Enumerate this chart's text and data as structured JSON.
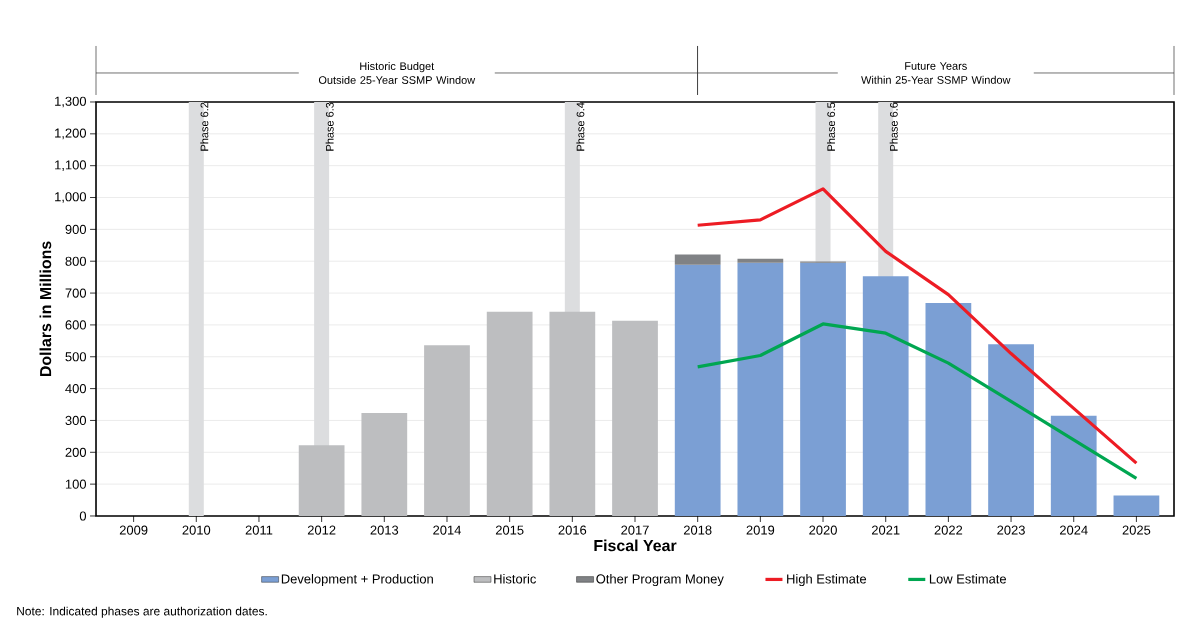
{
  "chart_data": {
    "type": "bar",
    "xlabel": "Fiscal Year",
    "ylabel": "Dollars in Millions",
    "stacked": true,
    "grid": "y",
    "legend": "bottom",
    "x": [
      2012,
      2013,
      2014,
      2015,
      2016,
      2017,
      2018,
      2019,
      2020,
      2021,
      2022,
      2023,
      2024,
      2025
    ],
    "xlim": [
      2008.4,
      2025.6
    ],
    "xticks": [
      2009,
      2010,
      2011,
      2012,
      2013,
      2014,
      2015,
      2016,
      2017,
      2018,
      2019,
      2020,
      2021,
      2022,
      2023,
      2024,
      2025
    ],
    "ylim": [
      0,
      1300
    ],
    "yticks": [
      0,
      100,
      200,
      300,
      400,
      500,
      600,
      700,
      800,
      900,
      {
        "value": 1000,
        "label": "1,000"
      },
      {
        "value": 1100,
        "label": "1,100"
      },
      {
        "value": 1200,
        "label": "1,200"
      },
      {
        "value": 1300,
        "label": "1,300"
      }
    ],
    "series": [
      {
        "name": "Development + Production",
        "color": "#7b9fd4",
        "values": [
          null,
          null,
          null,
          null,
          null,
          null,
          789,
          795,
          795,
          753,
          669,
          539,
          315,
          64
        ]
      },
      {
        "name": "Historic",
        "color": "#bdbec0",
        "values": [
          222,
          323,
          536,
          641,
          641,
          613,
          null,
          null,
          null,
          null,
          null,
          null,
          null,
          null
        ]
      },
      {
        "name": "Other Program Money",
        "color": "#808285",
        "values": [
          null,
          null,
          null,
          null,
          null,
          null,
          32,
          13,
          4,
          null,
          null,
          null,
          null,
          null
        ]
      },
      {
        "name": "High Estimate",
        "type": "line",
        "color": "#ed1c24",
        "values": [
          null,
          null,
          null,
          null,
          null,
          null,
          913,
          930,
          1027,
          831,
          695,
          510,
          338,
          166
        ]
      },
      {
        "name": "Low Estimate",
        "type": "line",
        "color": "#00a651",
        "values": [
          null,
          null,
          null,
          null,
          null,
          null,
          468,
          504,
          603,
          574,
          480,
          360,
          239,
          118
        ]
      }
    ],
    "ref_lines": [
      {
        "axis": "x",
        "value": 2010,
        "label": "Phase 6.2",
        "color": "#dcdddf"
      },
      {
        "axis": "x",
        "value": 2012,
        "label": "Phase 6.3",
        "color": "#dcdddf"
      },
      {
        "axis": "x",
        "value": 2016,
        "label": "Phase 6.4",
        "color": "#dcdddf"
      },
      {
        "axis": "x",
        "value": 2020,
        "label": "Phase 6.5",
        "color": "#dcdddf"
      },
      {
        "axis": "x",
        "value": 2021,
        "label": "Phase 6.6",
        "color": "#dcdddf"
      }
    ],
    "annotations": [
      "Historic Budget\nOutside 25-Year SSMP Window",
      "Future Years\nWithin 25-Year SSMP Window",
      "Note: Indicated phases are authorization dates."
    ]
  }
}
